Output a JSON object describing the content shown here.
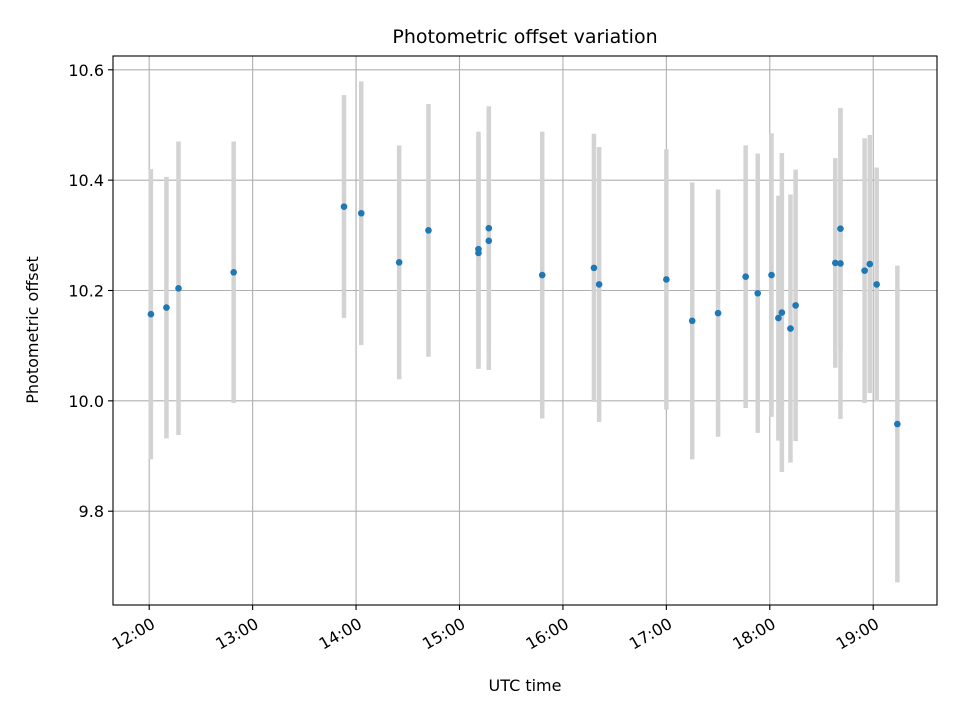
{
  "chart_data": {
    "type": "scatter",
    "title": "Photometric offset variation",
    "xlabel": "UTC time",
    "ylabel": "Photometric offset",
    "grid": true,
    "x_tick_labels": [
      "12:00",
      "13:00",
      "14:00",
      "15:00",
      "16:00",
      "17:00",
      "18:00",
      "19:00"
    ],
    "y_tick_labels": [
      "9.8",
      "10.0",
      "10.2",
      "10.4",
      "10.6"
    ],
    "y_ticks": [
      9.8,
      10.0,
      10.2,
      10.4,
      10.6
    ],
    "xlim": [
      "11:39",
      "19:37"
    ],
    "ylim": [
      9.63,
      10.625
    ],
    "colors": {
      "point": "#1f77b4",
      "errorbar": "#d3d3d3",
      "grid": "#b0b0b0"
    },
    "points": [
      {
        "x": "12:01",
        "y": 10.157,
        "err": 0.263
      },
      {
        "x": "12:10",
        "y": 10.169,
        "err": 0.237
      },
      {
        "x": "12:17",
        "y": 10.204,
        "err": 0.266
      },
      {
        "x": "12:49",
        "y": 10.233,
        "err": 0.237
      },
      {
        "x": "13:53",
        "y": 10.352,
        "err": 0.202
      },
      {
        "x": "14:03",
        "y": 10.34,
        "err": 0.239
      },
      {
        "x": "14:25",
        "y": 10.251,
        "err": 0.212
      },
      {
        "x": "14:42",
        "y": 10.309,
        "err": 0.229
      },
      {
        "x": "15:11",
        "y": 10.275,
        "err": 0.213
      },
      {
        "x": "15:11",
        "y": 10.268,
        "err": 0.21
      },
      {
        "x": "15:17",
        "y": 10.313,
        "err": 0.221
      },
      {
        "x": "15:17",
        "y": 10.29,
        "err": 0.234
      },
      {
        "x": "15:48",
        "y": 10.228,
        "err": 0.26
      },
      {
        "x": "16:18",
        "y": 10.241,
        "err": 0.243
      },
      {
        "x": "16:21",
        "y": 10.211,
        "err": 0.249
      },
      {
        "x": "17:00",
        "y": 10.22,
        "err": 0.236
      },
      {
        "x": "17:15",
        "y": 10.145,
        "err": 0.251
      },
      {
        "x": "17:30",
        "y": 10.159,
        "err": 0.224
      },
      {
        "x": "17:46",
        "y": 10.225,
        "err": 0.238
      },
      {
        "x": "17:53",
        "y": 10.195,
        "err": 0.253
      },
      {
        "x": "18:01",
        "y": 10.228,
        "err": 0.257
      },
      {
        "x": "18:05",
        "y": 10.15,
        "err": 0.222
      },
      {
        "x": "18:07",
        "y": 10.16,
        "err": 0.289
      },
      {
        "x": "18:12",
        "y": 10.131,
        "err": 0.243
      },
      {
        "x": "18:15",
        "y": 10.173,
        "err": 0.246
      },
      {
        "x": "18:38",
        "y": 10.25,
        "err": 0.19
      },
      {
        "x": "18:41",
        "y": 10.312,
        "err": 0.218
      },
      {
        "x": "18:41",
        "y": 10.249,
        "err": 0.282
      },
      {
        "x": "18:55",
        "y": 10.236,
        "err": 0.24
      },
      {
        "x": "18:58",
        "y": 10.248,
        "err": 0.234
      },
      {
        "x": "19:02",
        "y": 10.211,
        "err": 0.212
      },
      {
        "x": "19:14",
        "y": 9.958,
        "err": 0.287
      }
    ]
  }
}
